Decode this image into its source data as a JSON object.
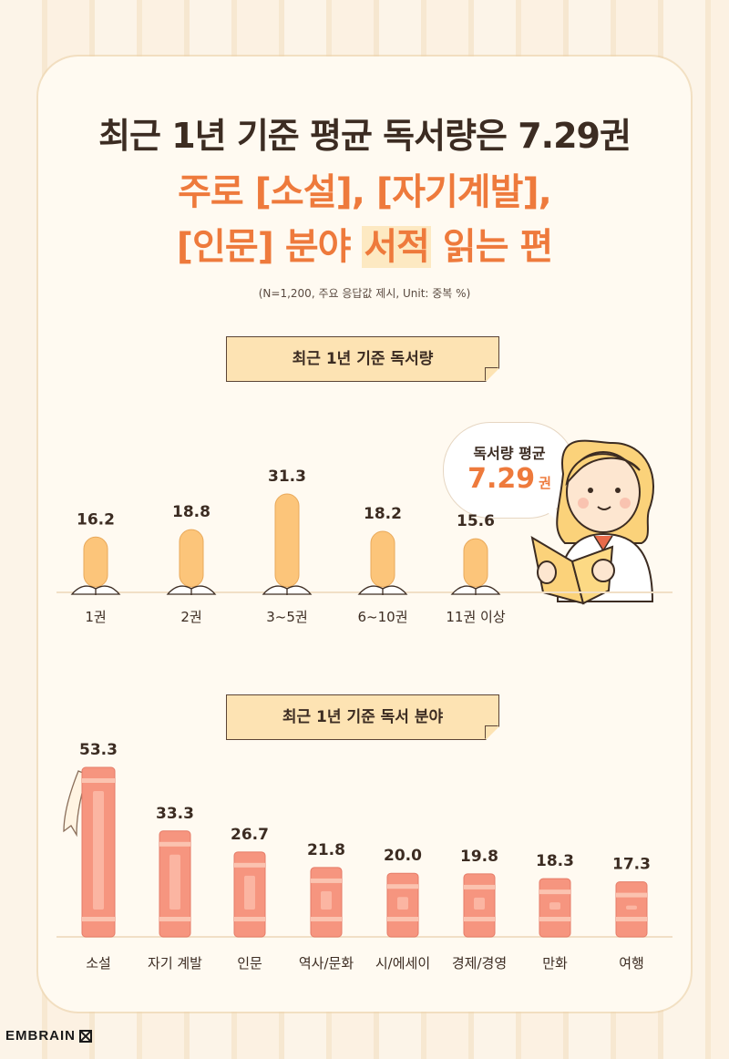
{
  "header": {
    "line1": "최근 1년 기준 평균 독서량은 7.29권",
    "line2": "주로 [소설], [자기계발],",
    "line3_a": "[인문] 분야 ",
    "line3_hl": "서적",
    "line3_b": " 읽는 편",
    "note": "(N=1,200, 주요 응답값 제시, Unit: 중복 %)"
  },
  "banner1": "최근 1년 기준 독서량",
  "banner2": "최근 1년 기준 독서 분야",
  "bubble": {
    "label": "독서량 평균",
    "value": "7.29",
    "unit": "권"
  },
  "brand": "EMBRAIN",
  "colors": {
    "orange": "#ee7a3c",
    "bar1": "#fcc57a",
    "bar2": "#f6957f",
    "dark": "#3c2c22"
  },
  "chart_data": [
    {
      "type": "bar",
      "categories": [
        "1권",
        "2권",
        "3~5권",
        "6~10권",
        "11권 이상"
      ],
      "values": [
        16.2,
        18.8,
        31.3,
        18.2,
        15.6
      ],
      "title": "최근 1년 기준 독서량"
    },
    {
      "type": "bar",
      "categories": [
        "소설",
        "자기 계발",
        "인문",
        "역사/문화",
        "시/에세이",
        "경제/경영",
        "만화",
        "여행"
      ],
      "values": [
        53.3,
        33.3,
        26.7,
        21.8,
        20.0,
        19.8,
        18.3,
        17.3
      ],
      "title": "최근 1년 기준 독서 분야"
    }
  ]
}
